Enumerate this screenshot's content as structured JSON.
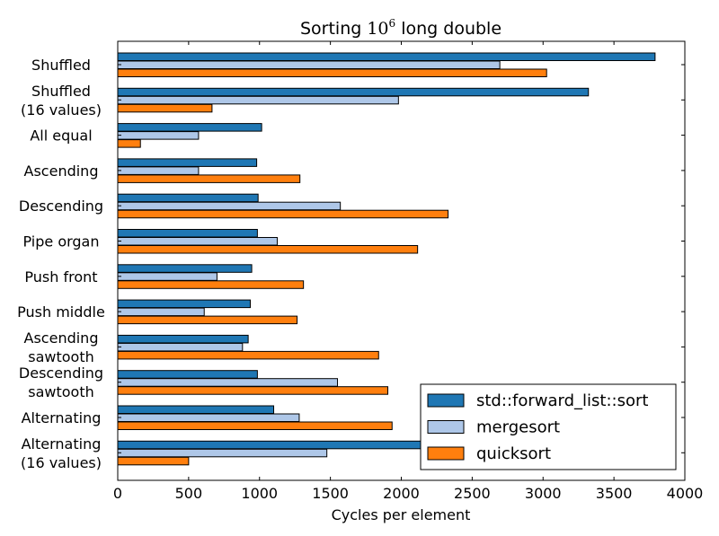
{
  "chart_data": {
    "type": "bar",
    "orientation": "horizontal",
    "title": {
      "prefix": "Sorting ",
      "base": "10",
      "exponent": "6",
      "suffix": " long double"
    },
    "xlabel": "Cycles per element",
    "ylabel": "",
    "xlim": [
      0,
      4000
    ],
    "xticks": [
      0,
      500,
      1000,
      1500,
      2000,
      2500,
      3000,
      3500,
      4000
    ],
    "grid": false,
    "legend_position": "lower-right",
    "categories": [
      [
        "Shuffled"
      ],
      [
        "Shuffled",
        "(16 values)"
      ],
      [
        "All equal"
      ],
      [
        "Ascending"
      ],
      [
        "Descending"
      ],
      [
        "Pipe organ"
      ],
      [
        "Push front"
      ],
      [
        "Push middle"
      ],
      [
        "Ascending",
        "sawtooth"
      ],
      [
        "Descending",
        "sawtooth"
      ],
      [
        "Alternating"
      ],
      [
        "Alternating",
        "(16 values)"
      ]
    ],
    "series": [
      {
        "name": "std::forward_list::sort",
        "color": "#1f77b4",
        "values": [
          3790,
          3320,
          1015,
          980,
          990,
          985,
          945,
          935,
          920,
          985,
          1100,
          2170
        ]
      },
      {
        "name": "mergesort",
        "color": "#aec7e8",
        "values": [
          2695,
          1980,
          570,
          570,
          1570,
          1125,
          700,
          610,
          880,
          1550,
          1280,
          1475
        ]
      },
      {
        "name": "quicksort",
        "color": "#ff7f0e",
        "values": [
          3025,
          665,
          160,
          1285,
          2330,
          2115,
          1310,
          1265,
          1840,
          1905,
          1935,
          500
        ]
      }
    ]
  }
}
